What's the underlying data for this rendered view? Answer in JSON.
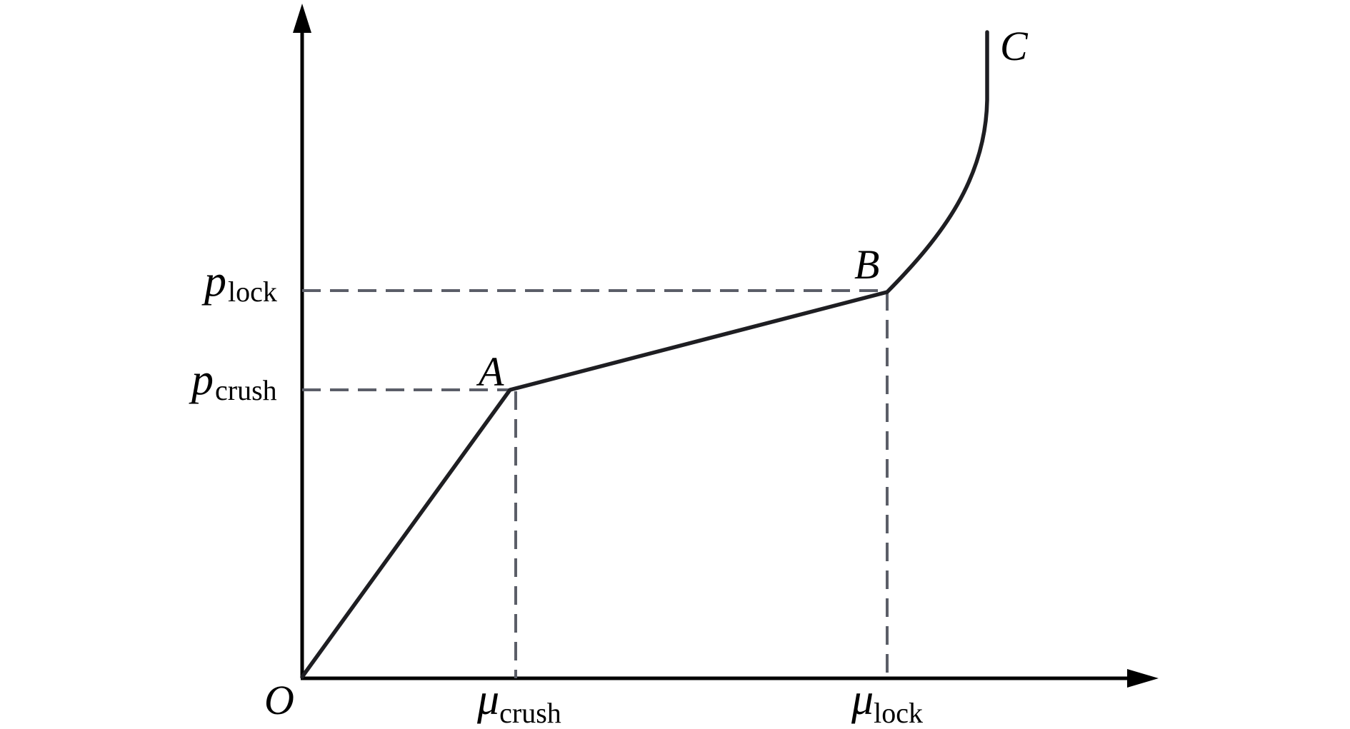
{
  "diagram": {
    "points": {
      "origin": "O",
      "a": "A",
      "b": "B",
      "c": "C"
    },
    "y_labels": {
      "p_lock": {
        "symbol": "p",
        "subscript": "lock"
      },
      "p_crush": {
        "symbol": "p",
        "subscript": "crush"
      }
    },
    "x_labels": {
      "mu_crush": {
        "symbol": "μ",
        "subscript": "crush"
      },
      "mu_lock": {
        "symbol": "μ",
        "subscript": "lock"
      }
    }
  }
}
